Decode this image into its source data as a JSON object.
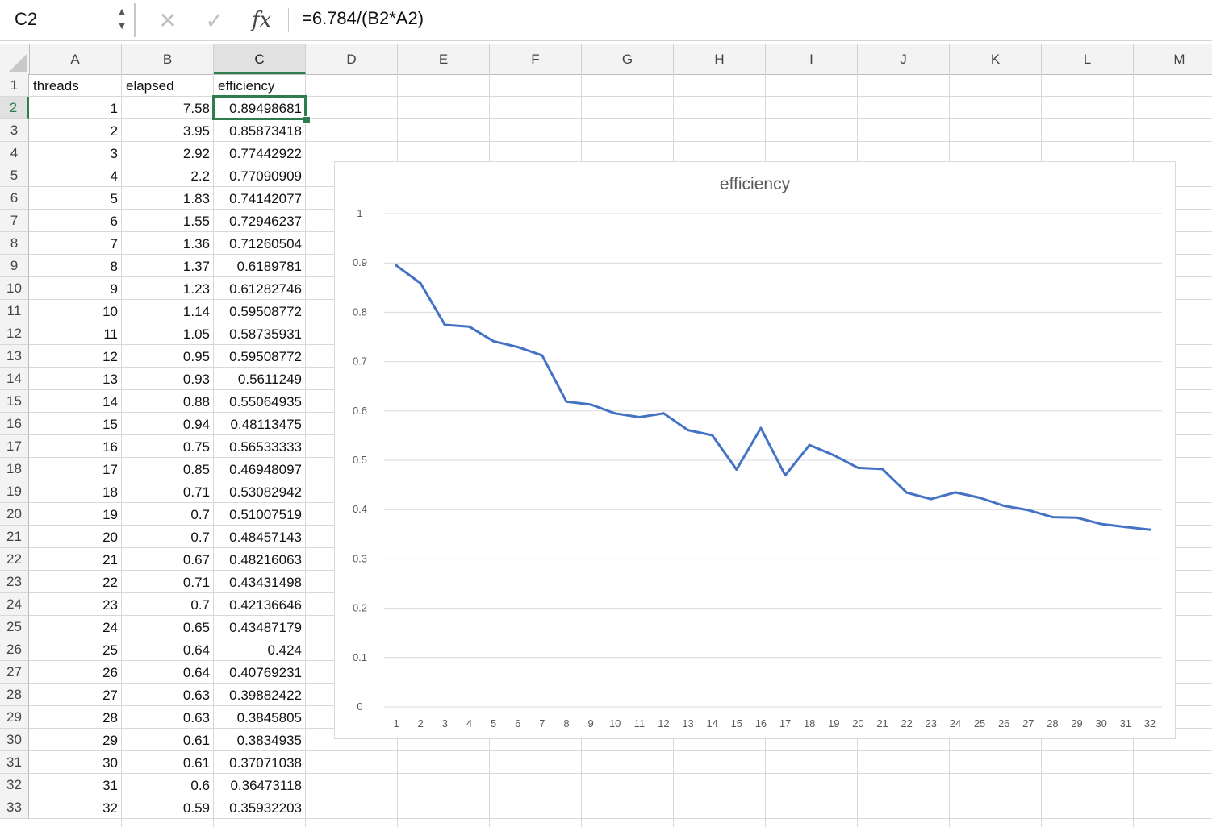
{
  "formula_bar": {
    "name_box": "C2",
    "formula": "=6.784/(B2*A2)",
    "fx_label": "fx",
    "cancel_glyph": "✕",
    "confirm_glyph": "✓",
    "spinner_up": "▲",
    "spinner_down": "▼"
  },
  "columns": [
    "A",
    "B",
    "C",
    "D",
    "E",
    "F",
    "G",
    "H",
    "I",
    "J",
    "K",
    "L",
    "M"
  ],
  "selected_cell": "C2",
  "accent_color": "#2e7d4f",
  "headers": [
    "threads",
    "elapsed",
    "efficiency"
  ],
  "rows": [
    [
      "1",
      "7.58",
      "0.89498681"
    ],
    [
      "2",
      "3.95",
      "0.85873418"
    ],
    [
      "3",
      "2.92",
      "0.77442922"
    ],
    [
      "4",
      "2.2",
      "0.77090909"
    ],
    [
      "5",
      "1.83",
      "0.74142077"
    ],
    [
      "6",
      "1.55",
      "0.72946237"
    ],
    [
      "7",
      "1.36",
      "0.71260504"
    ],
    [
      "8",
      "1.37",
      "0.6189781"
    ],
    [
      "9",
      "1.23",
      "0.61282746"
    ],
    [
      "10",
      "1.14",
      "0.59508772"
    ],
    [
      "11",
      "1.05",
      "0.58735931"
    ],
    [
      "12",
      "0.95",
      "0.59508772"
    ],
    [
      "13",
      "0.93",
      "0.5611249"
    ],
    [
      "14",
      "0.88",
      "0.55064935"
    ],
    [
      "15",
      "0.94",
      "0.48113475"
    ],
    [
      "16",
      "0.75",
      "0.56533333"
    ],
    [
      "17",
      "0.85",
      "0.46948097"
    ],
    [
      "18",
      "0.71",
      "0.53082942"
    ],
    [
      "19",
      "0.7",
      "0.51007519"
    ],
    [
      "20",
      "0.7",
      "0.48457143"
    ],
    [
      "21",
      "0.67",
      "0.48216063"
    ],
    [
      "22",
      "0.71",
      "0.43431498"
    ],
    [
      "23",
      "0.7",
      "0.42136646"
    ],
    [
      "24",
      "0.65",
      "0.43487179"
    ],
    [
      "25",
      "0.64",
      "0.424"
    ],
    [
      "26",
      "0.64",
      "0.40769231"
    ],
    [
      "27",
      "0.63",
      "0.39882422"
    ],
    [
      "28",
      "0.63",
      "0.3845805"
    ],
    [
      "29",
      "0.61",
      "0.3834935"
    ],
    [
      "30",
      "0.61",
      "0.37071038"
    ],
    [
      "31",
      "0.6",
      "0.36473118"
    ],
    [
      "32",
      "0.59",
      "0.35932203"
    ]
  ],
  "chart_data": {
    "type": "line",
    "title": "efficiency",
    "xlabel": "",
    "ylabel": "",
    "x": [
      1,
      2,
      3,
      4,
      5,
      6,
      7,
      8,
      9,
      10,
      11,
      12,
      13,
      14,
      15,
      16,
      17,
      18,
      19,
      20,
      21,
      22,
      23,
      24,
      25,
      26,
      27,
      28,
      29,
      30,
      31,
      32
    ],
    "series": [
      {
        "values": [
          0.89498681,
          0.85873418,
          0.77442922,
          0.77090909,
          0.74142077,
          0.72946237,
          0.71260504,
          0.6189781,
          0.61282746,
          0.59508772,
          0.58735931,
          0.59508772,
          0.5611249,
          0.55064935,
          0.48113475,
          0.56533333,
          0.46948097,
          0.53082942,
          0.51007519,
          0.48457143,
          0.48216063,
          0.43431498,
          0.42136646,
          0.43487179,
          0.424,
          0.40769231,
          0.39882422,
          0.3845805,
          0.3834935,
          0.37071038,
          0.36473118,
          0.35932203
        ],
        "color": "#4472c4"
      }
    ],
    "ylim": [
      0,
      1
    ],
    "yticks": [
      "0",
      "0.1",
      "0.2",
      "0.3",
      "0.4",
      "0.5",
      "0.6",
      "0.7",
      "0.8",
      "0.9",
      "1"
    ],
    "xticks": [
      "1",
      "2",
      "3",
      "4",
      "5",
      "6",
      "7",
      "8",
      "9",
      "10",
      "11",
      "12",
      "13",
      "14",
      "15",
      "16",
      "17",
      "18",
      "19",
      "20",
      "21",
      "22",
      "23",
      "24",
      "25",
      "26",
      "27",
      "28",
      "29",
      "30",
      "31",
      "32"
    ],
    "grid": true,
    "legend": "none"
  }
}
